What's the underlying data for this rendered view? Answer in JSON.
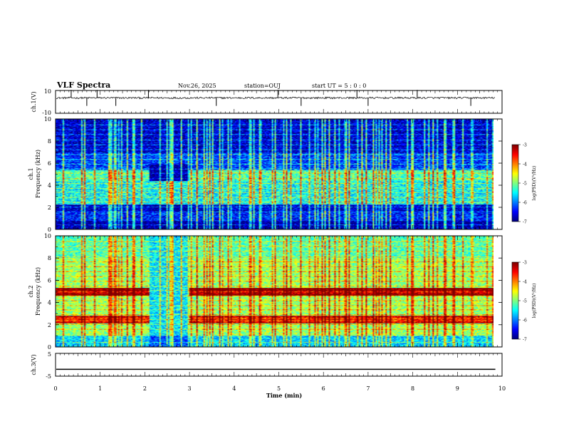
{
  "header": {
    "title": "VLF Spectra",
    "date": "Nov.26, 2025",
    "station": "station=OUJ",
    "start": "start  UT =   5 : 0  : 0"
  },
  "chart_data": [
    {
      "type": "line",
      "name": "ch1-waveform",
      "ylabel": "ch.1(V)",
      "ylim": [
        -10,
        10
      ],
      "yticks": [
        10,
        -10
      ],
      "baseline": 3.5,
      "noise_amplitude": 0.8,
      "spike_times_min": [
        0.35,
        0.7,
        0.93,
        1.35,
        2.08,
        3.6,
        4.98,
        5.5,
        6.75,
        7.0,
        8.1,
        9.3
      ],
      "xlim": [
        0,
        9.85
      ]
    },
    {
      "type": "heatmap",
      "name": "ch1-spectrogram",
      "ylabel": "Frequency (kHz)",
      "channel_label": "ch.1",
      "ylim": [
        0,
        10
      ],
      "yticks": [
        0,
        2,
        4,
        6,
        8,
        10
      ],
      "xlim": [
        0,
        9.85
      ],
      "colorbar": {
        "label": "log(PSD)(V²/Hz)",
        "range": [
          -7,
          -3
        ],
        "ticks": [
          -3,
          -4,
          -5,
          -6,
          -7
        ]
      },
      "spectral_bands_kHz": [
        {
          "low": 0.0,
          "high": 0.8,
          "level": -6.9
        },
        {
          "low": 0.8,
          "high": 1.6,
          "level": -6.4
        },
        {
          "low": 1.6,
          "high": 2.3,
          "level": -6.7
        },
        {
          "low": 2.3,
          "high": 4.4,
          "level": -5.5
        },
        {
          "low": 4.4,
          "high": 5.4,
          "level": -5.2
        },
        {
          "low": 5.4,
          "high": 7.0,
          "level": -6.3
        },
        {
          "low": 7.0,
          "high": 10.0,
          "level": -6.7
        }
      ]
    },
    {
      "type": "heatmap",
      "name": "ch2-spectrogram",
      "ylabel": "Frequency (kHz)",
      "channel_label": "ch.2",
      "ylim": [
        0,
        10
      ],
      "yticks": [
        0,
        2,
        4,
        6,
        8,
        10
      ],
      "xlim": [
        0,
        9.85
      ],
      "colorbar": {
        "label": "log(PSD)(V²/Hz)",
        "range": [
          -7,
          -3
        ],
        "ticks": [
          -3,
          -4,
          -5,
          -6,
          -7
        ]
      },
      "emission_lines_kHz": [
        {
          "freq": 5.0,
          "level": -3.6
        },
        {
          "freq": 2.5,
          "level": -4.0
        }
      ],
      "quiet_interval_min": [
        2.1,
        2.98
      ]
    },
    {
      "type": "line",
      "name": "ch3-waveform",
      "ylabel": "ch.3(V)",
      "ylim": [
        -5,
        5
      ],
      "yticks": [
        5,
        -5
      ],
      "value": -2.0,
      "xlim": [
        0,
        9.85
      ]
    }
  ],
  "x_axis": {
    "label": "Time (min)",
    "range": [
      0,
      10
    ],
    "ticks": [
      "0",
      "1",
      "2",
      "3",
      "4",
      "5",
      "6",
      "7",
      "8",
      "9",
      "10"
    ]
  }
}
